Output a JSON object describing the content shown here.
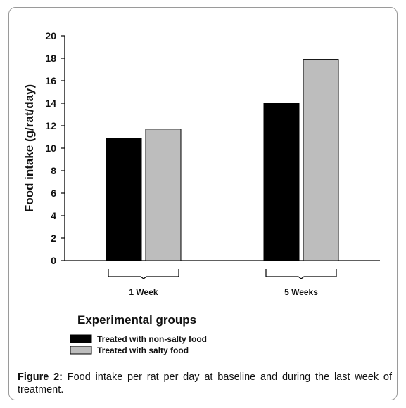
{
  "chart_data": {
    "type": "bar",
    "categories": [
      "1 Week",
      "5 Weeks"
    ],
    "series": [
      {
        "name": "Treated with non-salty food",
        "values": [
          10.9,
          14.0
        ],
        "color": "#000000"
      },
      {
        "name": "Treated with salty food",
        "values": [
          11.7,
          17.9
        ],
        "color": "#bdbdbd"
      }
    ],
    "ylabel": "Food intake (g/rat/day)",
    "xlabel": "Experimental groups",
    "ylim": [
      0,
      20
    ],
    "yticks": [
      "0",
      "2",
      "4",
      "6",
      "8",
      "10",
      "12",
      "14",
      "16",
      "18",
      "20"
    ],
    "grid": false,
    "legend_position": "bottom-left"
  },
  "caption": {
    "label": "Figure 2:",
    "text": " Food intake per rat per day at baseline and during the last week of treatment."
  }
}
